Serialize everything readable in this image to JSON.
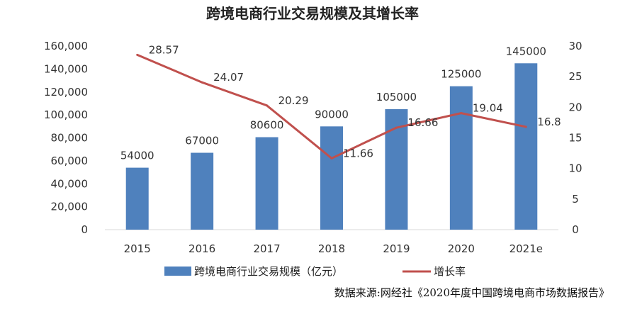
{
  "chart_data": {
    "type": "bar",
    "title": "跨境电商行业交易规模及其增长率",
    "categories": [
      "2015",
      "2016",
      "2017",
      "2018",
      "2019",
      "2020",
      "2021e"
    ],
    "series": [
      {
        "name": "跨境电商行业交易规模（亿元）",
        "type": "bar",
        "axis": "left",
        "color": "#4f81bd",
        "values": [
          54000,
          67000,
          80600,
          90000,
          105000,
          125000,
          145000
        ],
        "labels": [
          "54000",
          "67000",
          "80600",
          "90000",
          "105000",
          "125000",
          "145000"
        ]
      },
      {
        "name": "增长率",
        "type": "line",
        "axis": "right",
        "color": "#c0504d",
        "values": [
          28.57,
          24.07,
          20.29,
          11.66,
          16.66,
          19.04,
          16.8
        ],
        "labels": [
          "28.57",
          "24.07",
          "20.29",
          "11.66",
          "16.66",
          "19.04",
          "16.8"
        ]
      }
    ],
    "y_left": {
      "ylim": [
        0,
        160000
      ],
      "ticks": [
        0,
        20000,
        40000,
        60000,
        80000,
        100000,
        120000,
        140000,
        160000
      ],
      "tick_labels": [
        "0",
        "20,000",
        "40,000",
        "60,000",
        "80,000",
        "100,000",
        "120,000",
        "140,000",
        "160,000"
      ]
    },
    "y_right": {
      "ylim": [
        0,
        30
      ],
      "ticks": [
        0,
        5,
        10,
        15,
        20,
        25,
        30
      ],
      "tick_labels": [
        "0",
        "5",
        "10",
        "15",
        "20",
        "25",
        "30"
      ]
    },
    "grid": false,
    "legend_position": "bottom"
  },
  "source_note": "数据来源:网经社《2020年度中国跨境电商市场数据报告》"
}
